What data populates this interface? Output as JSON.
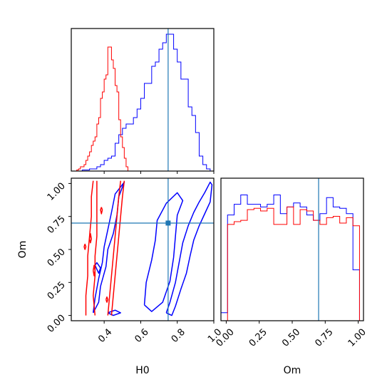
{
  "colors": {
    "blue": "#0000ff",
    "red": "#ff0000",
    "truth": "#1f77b4",
    "axes": "#000000"
  },
  "chart_data": {
    "type": "corner",
    "parameters": [
      "H0",
      "Om"
    ],
    "truth": {
      "H0": 0.75,
      "Om": 0.7
    },
    "axes": {
      "H0": {
        "label": "H0",
        "range": [
          0.22,
          1.0
        ],
        "ticks": [
          0.4,
          0.6,
          0.8,
          1.0
        ],
        "tick_labels": [
          "0.4",
          "0.6",
          "0.8",
          "1.0"
        ]
      },
      "Om": {
        "label": "Om",
        "range": [
          -0.04,
          1.04
        ],
        "ticks": [
          0.0,
          0.25,
          0.5,
          0.75,
          1.0
        ],
        "tick_labels": [
          "0.00",
          "0.25",
          "0.50",
          "0.75",
          "1.00"
        ]
      }
    },
    "series": [
      {
        "color": "#0000ff",
        "H0_hist": {
          "edges": [
            0.24,
            0.26,
            0.28,
            0.3,
            0.32,
            0.34,
            0.36,
            0.38,
            0.4,
            0.42,
            0.44,
            0.46,
            0.48,
            0.5,
            0.52,
            0.54,
            0.56,
            0.58,
            0.6,
            0.62,
            0.64,
            0.66,
            0.68,
            0.7,
            0.72,
            0.74,
            0.76,
            0.78,
            0.8,
            0.82,
            0.84,
            0.86,
            0.88,
            0.9,
            0.92,
            0.94,
            0.96,
            0.98,
            1.0
          ],
          "counts": [
            0,
            0,
            0.5,
            0.5,
            1,
            1,
            2,
            3,
            5,
            6,
            7,
            13,
            17,
            20,
            22,
            22,
            25,
            29,
            34,
            41,
            41,
            49,
            51,
            57,
            60,
            64,
            64,
            57,
            51,
            43,
            43,
            30,
            26,
            18,
            7,
            3,
            1,
            0
          ]
        },
        "Om_hist": {
          "edges": [
            -0.04,
            0.01,
            0.06,
            0.11,
            0.16,
            0.21,
            0.26,
            0.31,
            0.36,
            0.41,
            0.46,
            0.51,
            0.56,
            0.61,
            0.66,
            0.71,
            0.76,
            0.81,
            0.86,
            0.91,
            0.96,
            1.01
          ],
          "counts": [
            0.06,
            0.79,
            0.87,
            0.94,
            0.87,
            0.87,
            0.85,
            0.87,
            0.94,
            0.8,
            0.85,
            0.88,
            0.85,
            0.79,
            0.75,
            0.8,
            0.92,
            0.85,
            0.84,
            0.8,
            0.38
          ]
        },
        "contours": [
          {
            "level": "inner",
            "points": [
              [
                0.62,
                0.08
              ],
              [
                0.63,
                0.25
              ],
              [
                0.66,
                0.42
              ],
              [
                0.68,
                0.57
              ],
              [
                0.69,
                0.72
              ],
              [
                0.74,
                0.85
              ],
              [
                0.8,
                0.93
              ],
              [
                0.83,
                0.87
              ],
              [
                0.8,
                0.76
              ],
              [
                0.79,
                0.6
              ],
              [
                0.78,
                0.44
              ],
              [
                0.76,
                0.26
              ],
              [
                0.72,
                0.1
              ],
              [
                0.66,
                0.03
              ],
              [
                0.62,
                0.08
              ]
            ]
          },
          {
            "level": "outer",
            "points": [
              [
                0.74,
                0.02
              ],
              [
                0.76,
                0.1
              ],
              [
                0.79,
                0.25
              ],
              [
                0.81,
                0.4
              ],
              [
                0.83,
                0.55
              ],
              [
                0.86,
                0.68
              ],
              [
                0.89,
                0.78
              ],
              [
                0.92,
                0.86
              ],
              [
                0.95,
                0.93
              ],
              [
                0.98,
                1.01
              ],
              [
                0.99,
                0.99
              ],
              [
                0.98,
                0.86
              ],
              [
                0.95,
                0.77
              ],
              [
                0.92,
                0.68
              ],
              [
                0.89,
                0.57
              ],
              [
                0.87,
                0.45
              ],
              [
                0.85,
                0.32
              ],
              [
                0.82,
                0.2
              ],
              [
                0.79,
                0.07
              ],
              [
                0.77,
                0.0
              ],
              [
                0.74,
                0.02
              ]
            ]
          },
          {
            "level": "inner",
            "points": [
              [
                0.34,
                0.02
              ],
              [
                0.37,
                0.1
              ],
              [
                0.38,
                0.22
              ],
              [
                0.41,
                0.37
              ],
              [
                0.42,
                0.5
              ],
              [
                0.45,
                0.62
              ],
              [
                0.47,
                0.76
              ],
              [
                0.48,
                0.9
              ],
              [
                0.51,
                1.01
              ],
              [
                0.46,
                0.92
              ],
              [
                0.44,
                0.78
              ],
              [
                0.42,
                0.65
              ],
              [
                0.4,
                0.52
              ],
              [
                0.39,
                0.4
              ],
              [
                0.37,
                0.28
              ],
              [
                0.35,
                0.13
              ],
              [
                0.34,
                0.02
              ]
            ]
          },
          {
            "level": "outer",
            "points": [
              [
                0.42,
                0.02
              ],
              [
                0.45,
                0.0
              ],
              [
                0.49,
                0.02
              ],
              [
                0.46,
                0.04
              ],
              [
                0.42,
                0.02
              ]
            ]
          },
          {
            "level": "outer",
            "points": [
              [
                0.35,
                0.38
              ],
              [
                0.37,
                0.32
              ],
              [
                0.38,
                0.36
              ],
              [
                0.36,
                0.4
              ],
              [
                0.35,
                0.38
              ]
            ]
          }
        ]
      },
      {
        "color": "#ff0000",
        "H0_hist": {
          "edges": [
            0.24,
            0.25,
            0.26,
            0.27,
            0.28,
            0.29,
            0.3,
            0.31,
            0.32,
            0.33,
            0.34,
            0.35,
            0.36,
            0.37,
            0.38,
            0.39,
            0.4,
            0.41,
            0.42,
            0.43,
            0.44,
            0.45,
            0.46,
            0.47,
            0.48,
            0.49,
            0.5,
            0.51,
            0.52,
            0.53
          ],
          "counts": [
            0,
            0.5,
            1,
            2,
            2,
            3,
            5,
            7,
            9,
            12,
            14,
            16,
            22,
            25,
            34,
            37,
            43,
            45,
            58,
            58,
            52,
            48,
            40,
            37,
            24,
            16,
            11,
            6,
            2
          ]
        },
        "Om_hist": {
          "edges": [
            -0.04,
            0.01,
            0.06,
            0.11,
            0.16,
            0.21,
            0.26,
            0.31,
            0.36,
            0.41,
            0.46,
            0.51,
            0.56,
            0.61,
            0.66,
            0.71,
            0.76,
            0.81,
            0.86,
            0.91,
            0.96,
            1.01
          ],
          "counts": [
            0,
            0.72,
            0.74,
            0.75,
            0.83,
            0.84,
            0.82,
            0.84,
            0.72,
            0.72,
            0.85,
            0.72,
            0.83,
            0.82,
            0.75,
            0.72,
            0.77,
            0.78,
            0.73,
            0.77,
            0.71
          ]
        },
        "contours": [
          {
            "level": "outer",
            "points": [
              [
                0.3,
                0.0
              ],
              [
                0.3,
                0.15
              ],
              [
                0.31,
                0.3
              ],
              [
                0.31,
                0.45
              ],
              [
                0.32,
                0.6
              ],
              [
                0.33,
                0.75
              ],
              [
                0.33,
                0.9
              ],
              [
                0.34,
                1.02
              ]
            ]
          },
          {
            "level": "outer",
            "points": [
              [
                0.35,
                0.0
              ],
              [
                0.34,
                0.15
              ],
              [
                0.35,
                0.3
              ],
              [
                0.35,
                0.45
              ],
              [
                0.36,
                0.6
              ],
              [
                0.36,
                0.75
              ],
              [
                0.36,
                0.9
              ],
              [
                0.36,
                1.02
              ]
            ]
          },
          {
            "level": "inner",
            "points": [
              [
                0.42,
                0.0
              ],
              [
                0.43,
                0.15
              ],
              [
                0.44,
                0.3
              ],
              [
                0.45,
                0.45
              ],
              [
                0.46,
                0.6
              ],
              [
                0.47,
                0.75
              ],
              [
                0.48,
                0.9
              ],
              [
                0.49,
                1.02
              ]
            ]
          },
          {
            "level": "outer",
            "points": [
              [
                0.44,
                0.0
              ],
              [
                0.45,
                0.15
              ],
              [
                0.46,
                0.3
              ],
              [
                0.47,
                0.45
              ],
              [
                0.48,
                0.6
              ],
              [
                0.49,
                0.75
              ],
              [
                0.5,
                0.9
              ],
              [
                0.51,
                1.02
              ]
            ]
          },
          {
            "level": "inner",
            "points": [
              [
                0.385,
                0.82
              ],
              [
                0.39,
                0.8
              ],
              [
                0.385,
                0.77
              ],
              [
                0.38,
                0.8
              ],
              [
                0.385,
                0.82
              ]
            ]
          },
          {
            "level": "inner",
            "points": [
              [
                0.32,
                0.58
              ],
              [
                0.325,
                0.62
              ],
              [
                0.33,
                0.58
              ],
              [
                0.325,
                0.55
              ],
              [
                0.32,
                0.58
              ]
            ]
          },
          {
            "level": "inner",
            "points": [
              [
                0.34,
                0.34
              ],
              [
                0.345,
                0.38
              ],
              [
                0.35,
                0.34
              ],
              [
                0.345,
                0.3
              ],
              [
                0.34,
                0.34
              ]
            ]
          },
          {
            "level": "inner",
            "points": [
              [
                0.41,
                0.12
              ],
              [
                0.415,
                0.14
              ],
              [
                0.42,
                0.12
              ],
              [
                0.415,
                0.1
              ],
              [
                0.41,
                0.12
              ]
            ]
          },
          {
            "level": "inner",
            "points": [
              [
                0.29,
                0.52
              ],
              [
                0.295,
                0.54
              ],
              [
                0.3,
                0.52
              ],
              [
                0.295,
                0.5
              ],
              [
                0.29,
                0.52
              ]
            ]
          }
        ]
      }
    ]
  }
}
